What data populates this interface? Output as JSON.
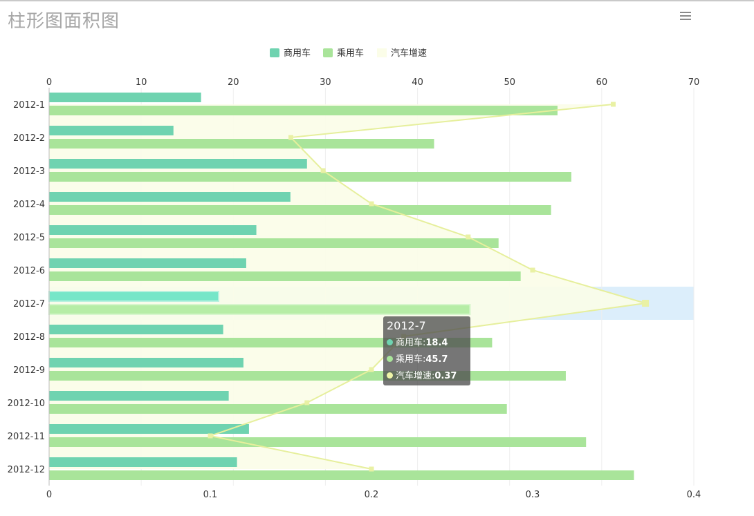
{
  "page": {
    "title": "柱形图面积图"
  },
  "toolbar": {
    "menu_icon": "hamburger-menu-icon"
  },
  "chart_data": {
    "type": "bar",
    "orientation": "horizontal",
    "categories": [
      "2012-1",
      "2012-2",
      "2012-3",
      "2012-4",
      "2012-5",
      "2012-6",
      "2012-7",
      "2012-8",
      "2012-9",
      "2012-10",
      "2012-11",
      "2012-12"
    ],
    "series": [
      {
        "name": "商用车",
        "type": "bar",
        "color": "#6fd3b0",
        "values": [
          16.5,
          13.5,
          28,
          26.2,
          22.5,
          21.4,
          18.4,
          18.9,
          21.1,
          19.5,
          21.7,
          20.4
        ]
      },
      {
        "name": "乘用车",
        "type": "bar",
        "color": "#a9e49a",
        "values": [
          55.2,
          41.8,
          56.7,
          54.5,
          48.8,
          51.2,
          45.7,
          48.1,
          56.1,
          49.7,
          58.3,
          63.5
        ]
      },
      {
        "name": "汽车增速",
        "type": "area",
        "color": "#eef5a8",
        "values": [
          0.35,
          0.15,
          0.17,
          0.2,
          0.26,
          0.3,
          0.37,
          0.22,
          0.2,
          0.16,
          0.1,
          0.2
        ]
      }
    ],
    "axes": {
      "top": {
        "min": 0,
        "max": 70,
        "ticks": [
          "0",
          "10",
          "20",
          "30",
          "40",
          "50",
          "60",
          "70"
        ]
      },
      "bottom": {
        "min": 0,
        "max": 0.4,
        "ticks": [
          "0",
          "0.1",
          "0.2",
          "0.3",
          "0.4"
        ]
      }
    },
    "legend": {
      "position": "top-center",
      "labels": [
        "商用车",
        "乘用车",
        "汽车增速"
      ]
    },
    "grid": true,
    "highlighted_category": "2012-7"
  },
  "tooltip": {
    "title": "2012-7",
    "rows": [
      {
        "label": "商用车:",
        "value": "18.4",
        "color": "#6fd3b0"
      },
      {
        "label": "乘用车:",
        "value": "45.7",
        "color": "#a9e49a"
      },
      {
        "label": "汽车增速:",
        "value": "0.37",
        "color": "#eef5a8"
      }
    ]
  }
}
